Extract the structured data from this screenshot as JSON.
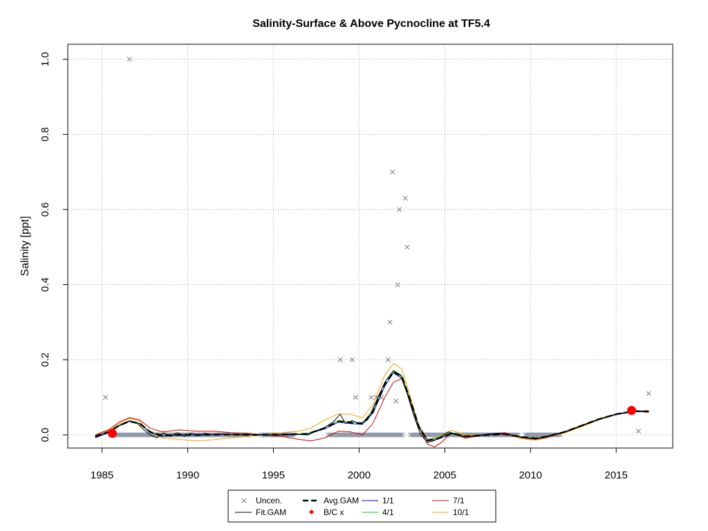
{
  "chart_data": {
    "type": "line",
    "title": "Salinity-Surface & Above Pycnocline at TF5.4",
    "xlabel": "",
    "ylabel": "Salinity [ppt]",
    "xlim": [
      1983.0,
      2018.3
    ],
    "ylim": [
      -0.035,
      1.04
    ],
    "x_ticks": [
      1985,
      1990,
      1995,
      2000,
      2005,
      2010,
      2015
    ],
    "y_ticks": [
      0.0,
      0.2,
      0.4,
      0.6,
      0.8,
      1.0
    ],
    "y_tick_labels": [
      "0.0",
      "0.2",
      "0.4",
      "0.6",
      "0.8",
      "1.0"
    ],
    "grid": true,
    "legend_position": "bottom",
    "colors": {
      "obs": "#7a7a7a",
      "obs_zero": "#8791a6",
      "fit": "#000000",
      "avg": "#000000",
      "s1": "#0000cd",
      "s4": "#00cc00",
      "s7": "#cc0000",
      "s10": "#f0a000",
      "bc": "#ff0000",
      "grid": "#c8c8c8"
    },
    "observations": [
      [
        1985.2,
        0.1
      ],
      [
        1986.6,
        1.0
      ],
      [
        1998.9,
        0.2
      ],
      [
        1999.6,
        0.2
      ],
      [
        1999.8,
        0.1
      ],
      [
        2000.7,
        0.1
      ],
      [
        2001.0,
        0.1
      ],
      [
        2001.3,
        0.1
      ],
      [
        2001.7,
        0.2
      ],
      [
        2001.8,
        0.3
      ],
      [
        2001.95,
        0.7
      ],
      [
        2002.15,
        0.09
      ],
      [
        2002.25,
        0.4
      ],
      [
        2002.35,
        0.6
      ],
      [
        2002.7,
        0.63
      ],
      [
        2002.8,
        0.5
      ],
      [
        2016.3,
        0.01
      ],
      [
        2016.9,
        0.11
      ]
    ],
    "zero_observations_ranges": [
      [
        1985.6,
        1993.6
      ],
      [
        1994.3,
        1996.2
      ],
      [
        1998.2,
        2002.6
      ],
      [
        2003.0,
        2009.3
      ],
      [
        2009.7,
        2011.8
      ]
    ],
    "series": [
      {
        "name": "Fit.GAM",
        "key": "fit",
        "points": [
          [
            1984.6,
            -0.005
          ],
          [
            1985.0,
            0.002
          ],
          [
            1985.4,
            0.008
          ],
          [
            1985.8,
            0.018
          ],
          [
            1986.2,
            0.03
          ],
          [
            1986.6,
            0.037
          ],
          [
            1987.0,
            0.033
          ],
          [
            1987.4,
            0.015
          ],
          [
            1987.8,
            0.0
          ],
          [
            1988.2,
            -0.008
          ],
          [
            1988.6,
            0.005
          ],
          [
            1989.0,
            -0.004
          ],
          [
            1989.4,
            0.006
          ],
          [
            1989.8,
            -0.004
          ],
          [
            1990.2,
            0.005
          ],
          [
            1990.6,
            -0.002
          ],
          [
            1991.0,
            0.004
          ],
          [
            1991.5,
            0.0
          ],
          [
            1992.0,
            0.002
          ],
          [
            1993.0,
            0.0
          ],
          [
            1994.0,
            0.001
          ],
          [
            1995.0,
            0.0
          ],
          [
            1996.0,
            0.002
          ],
          [
            1997.0,
            0.0
          ],
          [
            1997.5,
            0.01
          ],
          [
            1998.0,
            0.02
          ],
          [
            1998.5,
            0.035
          ],
          [
            1998.9,
            0.055
          ],
          [
            1999.2,
            0.03
          ],
          [
            1999.6,
            0.038
          ],
          [
            2000.0,
            0.03
          ],
          [
            2000.5,
            0.04
          ],
          [
            2001.0,
            0.09
          ],
          [
            2001.5,
            0.14
          ],
          [
            2002.0,
            0.17
          ],
          [
            2002.4,
            0.16
          ],
          [
            2002.8,
            0.11
          ],
          [
            2003.2,
            0.05
          ],
          [
            2003.6,
            0.0
          ],
          [
            2004.0,
            -0.02
          ],
          [
            2004.4,
            -0.015
          ],
          [
            2004.8,
            -0.004
          ],
          [
            2005.2,
            0.008
          ],
          [
            2005.7,
            0.0
          ],
          [
            2006.2,
            -0.006
          ],
          [
            2006.8,
            -0.002
          ],
          [
            2007.5,
            0.002
          ],
          [
            2008.2,
            0.004
          ],
          [
            2008.8,
            0.0
          ],
          [
            2009.3,
            -0.004
          ],
          [
            2010.0,
            -0.01
          ],
          [
            2010.5,
            -0.009
          ],
          [
            2011.0,
            -0.003
          ],
          [
            2012.0,
            0.008
          ],
          [
            2013.0,
            0.025
          ],
          [
            2014.0,
            0.042
          ],
          [
            2015.0,
            0.055
          ],
          [
            2016.0,
            0.064
          ],
          [
            2016.9,
            0.063
          ]
        ]
      },
      {
        "name": "Avg.GAM",
        "key": "avg",
        "points": [
          [
            1984.6,
            -0.004
          ],
          [
            1985.4,
            0.008
          ],
          [
            1986.0,
            0.025
          ],
          [
            1986.6,
            0.036
          ],
          [
            1987.2,
            0.03
          ],
          [
            1987.8,
            0.008
          ],
          [
            1988.5,
            -0.002
          ],
          [
            1989.5,
            0.0
          ],
          [
            1990.5,
            0.0
          ],
          [
            1992.0,
            0.001
          ],
          [
            1994.0,
            0.0
          ],
          [
            1996.0,
            0.001
          ],
          [
            1997.0,
            0.003
          ],
          [
            1998.0,
            0.018
          ],
          [
            1998.8,
            0.036
          ],
          [
            1999.5,
            0.033
          ],
          [
            2000.2,
            0.03
          ],
          [
            2000.8,
            0.06
          ],
          [
            2001.5,
            0.135
          ],
          [
            2002.0,
            0.168
          ],
          [
            2002.5,
            0.155
          ],
          [
            2003.0,
            0.09
          ],
          [
            2003.5,
            0.02
          ],
          [
            2004.0,
            -0.015
          ],
          [
            2004.6,
            -0.01
          ],
          [
            2005.4,
            0.004
          ],
          [
            2006.2,
            -0.004
          ],
          [
            2007.5,
            0.0
          ],
          [
            2008.5,
            0.002
          ],
          [
            2009.5,
            -0.006
          ],
          [
            2010.3,
            -0.009
          ],
          [
            2011.0,
            -0.004
          ],
          [
            2012.0,
            0.008
          ],
          [
            2013.0,
            0.025
          ],
          [
            2014.0,
            0.042
          ],
          [
            2015.0,
            0.055
          ],
          [
            2016.0,
            0.063
          ],
          [
            2016.9,
            0.063
          ]
        ]
      },
      {
        "name": "1/1",
        "key": "s1",
        "points": [
          [
            1984.6,
            -0.008
          ],
          [
            1985.4,
            0.006
          ],
          [
            1986.0,
            0.024
          ],
          [
            1986.6,
            0.036
          ],
          [
            1987.2,
            0.03
          ],
          [
            1987.8,
            0.006
          ],
          [
            1988.5,
            -0.004
          ],
          [
            1989.5,
            0.001
          ],
          [
            1990.5,
            -0.001
          ],
          [
            1992.0,
            0.001
          ],
          [
            1994.0,
            0.0
          ],
          [
            1996.0,
            0.0
          ],
          [
            1997.0,
            0.002
          ],
          [
            1998.0,
            0.016
          ],
          [
            1998.8,
            0.034
          ],
          [
            1999.5,
            0.03
          ],
          [
            2000.2,
            0.028
          ],
          [
            2000.8,
            0.058
          ],
          [
            2001.5,
            0.13
          ],
          [
            2002.0,
            0.165
          ],
          [
            2002.5,
            0.15
          ],
          [
            2003.0,
            0.085
          ],
          [
            2003.5,
            0.018
          ],
          [
            2004.0,
            -0.016
          ],
          [
            2004.6,
            -0.011
          ],
          [
            2005.4,
            0.003
          ],
          [
            2006.2,
            -0.005
          ],
          [
            2007.5,
            0.0
          ],
          [
            2008.5,
            0.002
          ],
          [
            2009.5,
            -0.007
          ],
          [
            2010.3,
            -0.01
          ],
          [
            2011.0,
            -0.005
          ],
          [
            2012.0,
            0.007
          ],
          [
            2013.0,
            0.024
          ],
          [
            2014.0,
            0.041
          ],
          [
            2015.0,
            0.054
          ],
          [
            2016.0,
            0.062
          ],
          [
            2016.9,
            0.062
          ]
        ]
      },
      {
        "name": "4/1",
        "key": "s4",
        "points": [
          [
            1984.6,
            -0.006
          ],
          [
            1985.4,
            0.007
          ],
          [
            1986.0,
            0.026
          ],
          [
            1986.6,
            0.038
          ],
          [
            1987.2,
            0.031
          ],
          [
            1987.8,
            0.009
          ],
          [
            1988.5,
            -0.001
          ],
          [
            1989.5,
            0.002
          ],
          [
            1990.5,
            0.0
          ],
          [
            1992.0,
            0.002
          ],
          [
            1994.0,
            0.001
          ],
          [
            1996.0,
            0.001
          ],
          [
            1997.0,
            0.004
          ],
          [
            1998.0,
            0.02
          ],
          [
            1998.8,
            0.038
          ],
          [
            1999.5,
            0.035
          ],
          [
            2000.2,
            0.032
          ],
          [
            2000.8,
            0.064
          ],
          [
            2001.5,
            0.14
          ],
          [
            2002.0,
            0.172
          ],
          [
            2002.5,
            0.158
          ],
          [
            2003.0,
            0.092
          ],
          [
            2003.5,
            0.022
          ],
          [
            2004.0,
            -0.013
          ],
          [
            2004.6,
            -0.008
          ],
          [
            2005.4,
            0.006
          ],
          [
            2006.2,
            -0.003
          ],
          [
            2007.5,
            0.001
          ],
          [
            2008.5,
            0.003
          ],
          [
            2009.5,
            -0.005
          ],
          [
            2010.3,
            -0.008
          ],
          [
            2011.0,
            -0.003
          ],
          [
            2012.0,
            0.009
          ],
          [
            2013.0,
            0.026
          ],
          [
            2014.0,
            0.043
          ],
          [
            2015.0,
            0.056
          ],
          [
            2016.0,
            0.064
          ],
          [
            2016.9,
            0.064
          ]
        ]
      },
      {
        "name": "7/1",
        "key": "s7",
        "points": [
          [
            1984.6,
            0.0
          ],
          [
            1985.4,
            0.014
          ],
          [
            1986.0,
            0.034
          ],
          [
            1986.6,
            0.046
          ],
          [
            1987.2,
            0.04
          ],
          [
            1987.8,
            0.018
          ],
          [
            1988.5,
            0.008
          ],
          [
            1989.5,
            0.013
          ],
          [
            1990.5,
            0.01
          ],
          [
            1991.5,
            0.01
          ],
          [
            1992.5,
            0.006
          ],
          [
            1994.0,
            0.002
          ],
          [
            1995.5,
            -0.004
          ],
          [
            1996.5,
            -0.012
          ],
          [
            1997.2,
            -0.016
          ],
          [
            1998.0,
            -0.008
          ],
          [
            1998.8,
            0.01
          ],
          [
            1999.5,
            0.008
          ],
          [
            2000.2,
            0.0
          ],
          [
            2000.8,
            0.03
          ],
          [
            2001.5,
            0.1
          ],
          [
            2002.0,
            0.14
          ],
          [
            2002.5,
            0.15
          ],
          [
            2003.0,
            0.09
          ],
          [
            2003.5,
            0.02
          ],
          [
            2004.0,
            -0.025
          ],
          [
            2004.4,
            -0.032
          ],
          [
            2004.8,
            -0.02
          ],
          [
            2005.4,
            0.006
          ],
          [
            2006.2,
            -0.009
          ],
          [
            2007.5,
            0.002
          ],
          [
            2008.5,
            0.006
          ],
          [
            2009.5,
            -0.008
          ],
          [
            2010.3,
            -0.012
          ],
          [
            2011.0,
            -0.006
          ],
          [
            2012.0,
            0.007
          ],
          [
            2013.0,
            0.024
          ],
          [
            2014.0,
            0.041
          ],
          [
            2015.0,
            0.055
          ],
          [
            2016.0,
            0.063
          ],
          [
            2016.9,
            0.06
          ]
        ]
      },
      {
        "name": "10/1",
        "key": "s10",
        "points": [
          [
            1984.6,
            -0.002
          ],
          [
            1985.4,
            0.012
          ],
          [
            1986.0,
            0.03
          ],
          [
            1986.6,
            0.044
          ],
          [
            1987.2,
            0.036
          ],
          [
            1987.8,
            0.006
          ],
          [
            1988.5,
            -0.008
          ],
          [
            1989.5,
            -0.012
          ],
          [
            1990.5,
            -0.016
          ],
          [
            1991.5,
            -0.013
          ],
          [
            1992.5,
            -0.008
          ],
          [
            1994.0,
            -0.002
          ],
          [
            1995.5,
            0.006
          ],
          [
            1996.5,
            0.01
          ],
          [
            1997.2,
            0.018
          ],
          [
            1998.0,
            0.04
          ],
          [
            1998.8,
            0.056
          ],
          [
            1999.5,
            0.055
          ],
          [
            2000.2,
            0.045
          ],
          [
            2000.8,
            0.08
          ],
          [
            2001.5,
            0.16
          ],
          [
            2002.0,
            0.19
          ],
          [
            2002.5,
            0.175
          ],
          [
            2003.0,
            0.1
          ],
          [
            2003.5,
            0.025
          ],
          [
            2004.0,
            -0.012
          ],
          [
            2004.6,
            -0.006
          ],
          [
            2005.4,
            0.012
          ],
          [
            2006.2,
            0.0
          ],
          [
            2007.5,
            0.001
          ],
          [
            2008.5,
            0.002
          ],
          [
            2009.5,
            -0.01
          ],
          [
            2010.3,
            -0.014
          ],
          [
            2011.0,
            -0.008
          ],
          [
            2012.0,
            0.005
          ],
          [
            2013.0,
            0.022
          ],
          [
            2014.0,
            0.04
          ],
          [
            2015.0,
            0.054
          ],
          [
            2016.0,
            0.063
          ],
          [
            2016.9,
            0.063
          ]
        ]
      }
    ],
    "bc_points": [
      [
        1985.6,
        0.004
      ],
      [
        2015.9,
        0.065
      ]
    ],
    "legend": [
      {
        "label": "Uncen.",
        "key": "uncen"
      },
      {
        "label": "Fit.GAM",
        "key": "fit"
      },
      {
        "label": "Avg.GAM",
        "key": "avg"
      },
      {
        "label": "B/C x",
        "key": "bc"
      },
      {
        "label": "1/1",
        "key": "s1"
      },
      {
        "label": "4/1",
        "key": "s4"
      },
      {
        "label": "7/1",
        "key": "s7"
      },
      {
        "label": "10/1",
        "key": "s10"
      }
    ]
  }
}
